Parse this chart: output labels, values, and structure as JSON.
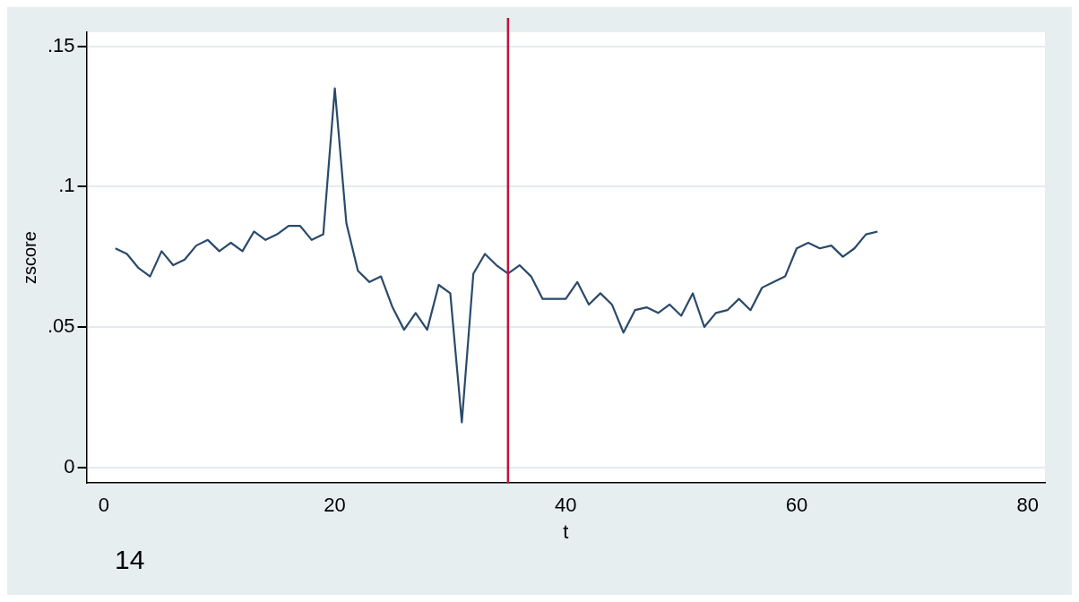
{
  "chart_data": {
    "type": "line",
    "xlabel": "t",
    "ylabel": "zscore",
    "x": [
      1,
      2,
      3,
      4,
      5,
      6,
      7,
      8,
      9,
      10,
      11,
      12,
      13,
      14,
      15,
      16,
      17,
      18,
      19,
      20,
      21,
      22,
      23,
      24,
      25,
      26,
      27,
      28,
      29,
      30,
      31,
      32,
      33,
      34,
      35,
      36,
      37,
      38,
      39,
      40,
      41,
      42,
      43,
      44,
      45,
      46,
      47,
      48,
      49,
      50,
      51,
      52,
      53,
      54,
      55,
      56,
      57,
      58,
      59,
      60,
      61,
      62,
      63,
      64,
      65,
      66,
      67
    ],
    "series": [
      {
        "color": "#2a4a6b",
        "values": [
          0.078,
          0.076,
          0.071,
          0.068,
          0.077,
          0.072,
          0.074,
          0.079,
          0.081,
          0.077,
          0.08,
          0.077,
          0.084,
          0.081,
          0.083,
          0.086,
          0.086,
          0.081,
          0.083,
          0.135,
          0.087,
          0.07,
          0.066,
          0.068,
          0.057,
          0.049,
          0.055,
          0.049,
          0.065,
          0.062,
          0.016,
          0.069,
          0.076,
          0.072,
          0.069,
          0.072,
          0.068,
          0.06,
          0.06,
          0.06,
          0.066,
          0.058,
          0.062,
          0.058,
          0.048,
          0.056,
          0.057,
          0.055,
          0.058,
          0.054,
          0.062,
          0.05,
          0.055,
          0.056,
          0.06,
          0.056,
          0.064,
          0.066,
          0.068,
          0.078,
          0.08,
          0.078,
          0.079,
          0.075,
          0.078,
          0.083,
          0.084
        ]
      }
    ],
    "xlim": [
      -1.5,
      81.5
    ],
    "xticks": [
      0,
      20,
      40,
      60,
      80
    ],
    "ylim": [
      -0.0056,
      0.155
    ],
    "yticks": [
      {
        "value": 0,
        "label": "0"
      },
      {
        "value": 0.05,
        "label": ".05"
      },
      {
        "value": 0.1,
        "label": ".1"
      },
      {
        "value": 0.15,
        "label": ".15"
      }
    ],
    "grid": "y",
    "legend": false,
    "marker": "none",
    "line_style": "solid",
    "ref_lines": [
      {
        "axis": "x",
        "value": 35,
        "color": "#c0143c"
      }
    ],
    "annotations": [
      "14"
    ]
  }
}
